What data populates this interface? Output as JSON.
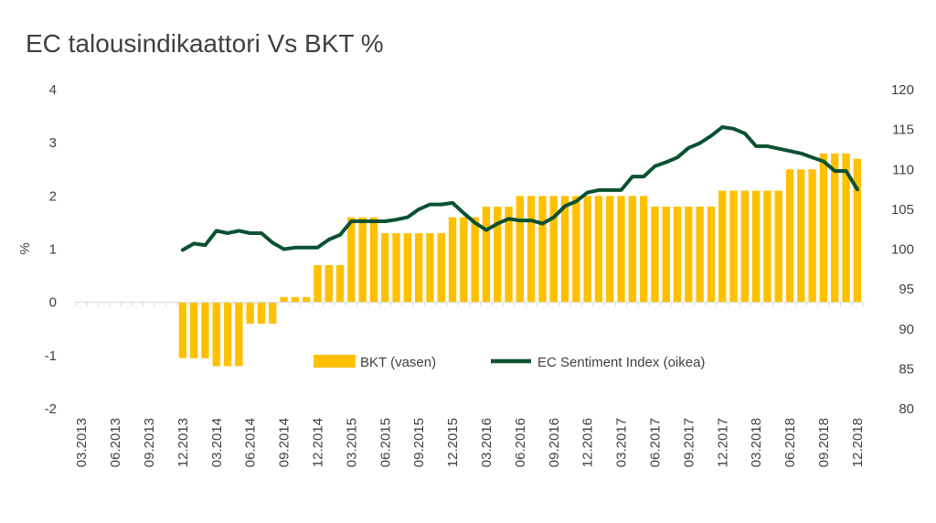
{
  "chart_data": {
    "type": "bar+line",
    "title": "EC talousindikaattori Vs BKT %",
    "ylabel_left": "%",
    "ylabel_right": "",
    "ylim_left": [
      -2,
      4
    ],
    "yticks_left": [
      "4",
      "3",
      "2",
      "1",
      "0",
      "-1",
      "-2"
    ],
    "ylim_right": [
      80,
      120
    ],
    "yticks_right": [
      "120",
      "115",
      "110",
      "105",
      "100",
      "95",
      "90",
      "85",
      "80"
    ],
    "x_tick_labels": [
      "03.2013",
      "06.2013",
      "09.2013",
      "12.2013",
      "03.2014",
      "06.2014",
      "09.2014",
      "12.2014",
      "03.2015",
      "06.2015",
      "09.2015",
      "12.2015",
      "03.2016",
      "06.2016",
      "09.2016",
      "12.2016",
      "03.2017",
      "06.2017",
      "09.2017",
      "12.2017",
      "03.2018",
      "06.2018",
      "09.2018",
      "12.2018"
    ],
    "months": [
      "03.2013",
      "04.2013",
      "05.2013",
      "06.2013",
      "07.2013",
      "08.2013",
      "09.2013",
      "10.2013",
      "11.2013",
      "12.2013",
      "01.2014",
      "02.2014",
      "03.2014",
      "04.2014",
      "05.2014",
      "06.2014",
      "07.2014",
      "08.2014",
      "09.2014",
      "10.2014",
      "11.2014",
      "12.2014",
      "01.2015",
      "02.2015",
      "03.2015",
      "04.2015",
      "05.2015",
      "06.2015",
      "07.2015",
      "08.2015",
      "09.2015",
      "10.2015",
      "11.2015",
      "12.2015",
      "01.2016",
      "02.2016",
      "03.2016",
      "04.2016",
      "05.2016",
      "06.2016",
      "07.2016",
      "08.2016",
      "09.2016",
      "10.2016",
      "11.2016",
      "12.2016",
      "01.2017",
      "02.2017",
      "03.2017",
      "04.2017",
      "05.2017",
      "06.2017",
      "07.2017",
      "08.2017",
      "09.2017",
      "10.2017",
      "11.2017",
      "12.2017",
      "01.2018",
      "02.2018",
      "03.2018",
      "04.2018",
      "05.2018",
      "06.2018",
      "07.2018",
      "08.2018",
      "09.2018",
      "10.2018",
      "11.2018",
      "12.2018"
    ],
    "series": [
      {
        "name": "BKT (vasen)",
        "type": "bar",
        "axis": "left",
        "color": "#FFC000",
        "values": [
          null,
          null,
          null,
          null,
          null,
          null,
          null,
          null,
          null,
          -1.05,
          -1.05,
          -1.05,
          -1.2,
          -1.2,
          -1.2,
          -0.4,
          -0.4,
          -0.4,
          0.1,
          0.1,
          0.1,
          0.7,
          0.7,
          0.7,
          1.6,
          1.6,
          1.6,
          1.3,
          1.3,
          1.3,
          1.3,
          1.3,
          1.3,
          1.6,
          1.6,
          1.6,
          1.8,
          1.8,
          1.8,
          2.0,
          2.0,
          2.0,
          2.0,
          2.0,
          2.0,
          2.0,
          2.0,
          2.0,
          2.0,
          2.0,
          2.0,
          1.8,
          1.8,
          1.8,
          1.8,
          1.8,
          1.8,
          2.1,
          2.1,
          2.1,
          2.1,
          2.1,
          2.1,
          2.5,
          2.5,
          2.5,
          2.8,
          2.8,
          2.8,
          2.7
        ]
      },
      {
        "name": "EC Sentiment Index (oikea)",
        "type": "line",
        "axis": "right",
        "color": "#0B5132",
        "values": [
          null,
          null,
          null,
          null,
          null,
          null,
          null,
          null,
          null,
          99.9,
          100.7,
          100.5,
          102.3,
          102.0,
          102.3,
          102.0,
          102.0,
          100.8,
          100.0,
          100.2,
          100.2,
          100.2,
          101.2,
          101.8,
          103.5,
          103.5,
          103.5,
          103.5,
          103.7,
          104.0,
          105.0,
          105.6,
          105.6,
          105.8,
          104.5,
          103.3,
          102.4,
          103.2,
          103.8,
          103.6,
          103.6,
          103.2,
          104.0,
          105.4,
          106.0,
          107.1,
          107.4,
          107.4,
          107.4,
          109.1,
          109.1,
          110.4,
          110.9,
          111.5,
          112.7,
          113.3,
          114.2,
          115.3,
          115.1,
          114.5,
          112.9,
          112.9,
          112.6,
          112.3,
          112.0,
          111.5,
          111.0,
          109.8,
          109.8,
          107.5
        ]
      }
    ],
    "grid": false,
    "legend_position": "inside-bottom-center"
  }
}
